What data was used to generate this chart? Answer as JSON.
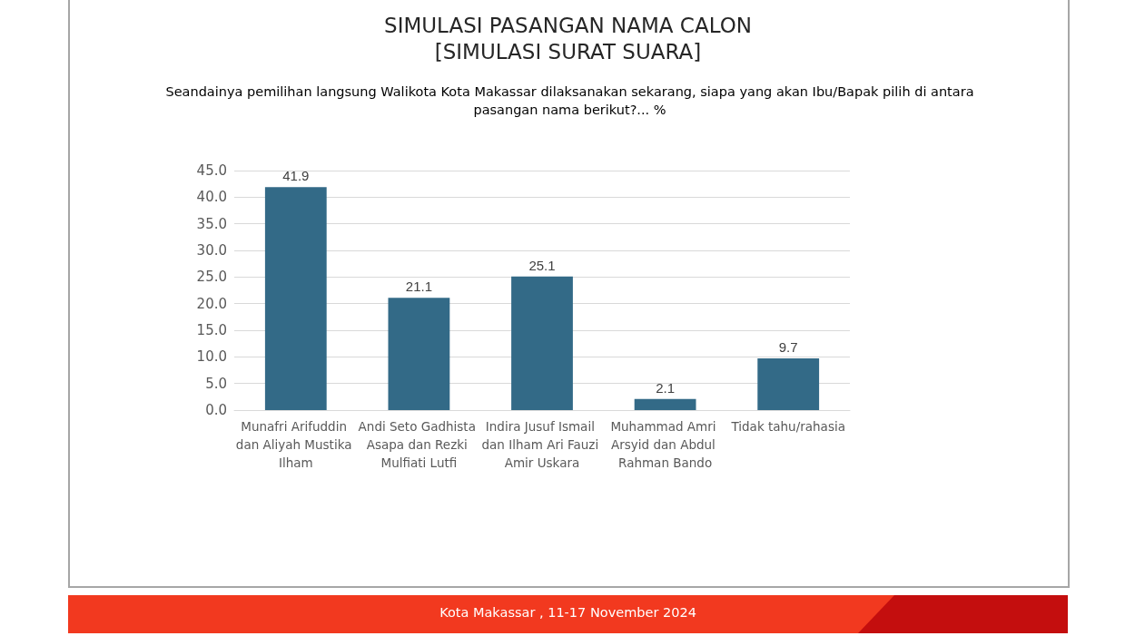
{
  "chart_data": {
    "type": "bar",
    "title": "SIMULASI PASANGAN NAMA CALON\n[SIMULASI SURAT SUARA]",
    "subtitle": "Seandainya pemilihan langsung Walikota Kota Makassar dilaksanakan sekarang, siapa yang akan Ibu/Bapak pilih di antara pasangan nama berikut?... %",
    "categories": [
      "Munafri Arifuddin dan Aliyah Mustika Ilham",
      "Andi Seto Gadhista Asapa dan Rezki Mulfiati Lutfi",
      "Indira Jusuf Ismail dan Ilham Ari Fauzi Amir Uskara",
      "Muhammad Amri Arsyid dan Abdul Rahman Bando",
      "Tidak tahu/rahasia"
    ],
    "values": [
      41.9,
      21.1,
      25.1,
      2.1,
      9.7
    ],
    "color": "#336a87",
    "ylim": [
      0,
      45
    ],
    "yticks": [
      {
        "value": 0,
        "label": "0.0"
      },
      {
        "value": 5,
        "label": "5.0"
      },
      {
        "value": 10,
        "label": "10.0"
      },
      {
        "value": 15,
        "label": "15.0"
      },
      {
        "value": 20,
        "label": "20.0"
      },
      {
        "value": 25,
        "label": "25.0"
      },
      {
        "value": 30,
        "label": "30.0"
      },
      {
        "value": 35,
        "label": "35.0"
      },
      {
        "value": 40,
        "label": "40.0"
      },
      {
        "value": 45,
        "label": "45.0"
      }
    ],
    "grid": "y",
    "data_labels": true,
    "annotations": [
      "Kota Makassar , 11-17 November 2024"
    ]
  }
}
